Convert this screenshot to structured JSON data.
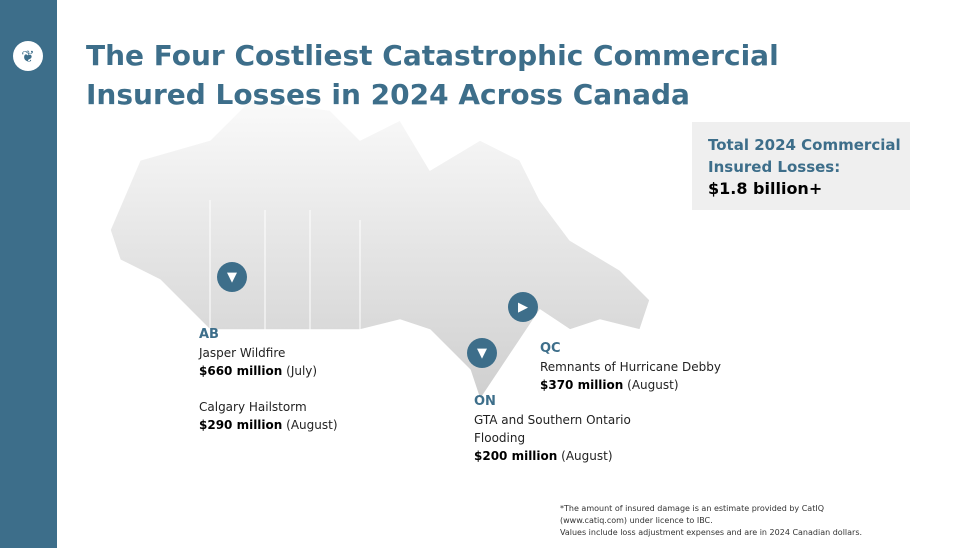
{
  "title": "The Four Costliest Catastrophic Commercial Insured Losses in 2024 Across Canada",
  "total": {
    "label1": "Total 2024 Commercial",
    "label2": "Insured Losses:",
    "value": "$1.8 billion+"
  },
  "ab": {
    "province": "AB",
    "event1": "Jasper Wildfire",
    "amount1": "$660 million",
    "when1": " (July)",
    "event2": "Calgary Hailstorm",
    "amount2": "$290 million",
    "when2": " (August)"
  },
  "qc": {
    "province": "QC",
    "event": "Remnants of Hurricane Debby",
    "amount": "$370 million",
    "when": " (August)"
  },
  "on": {
    "province": "ON",
    "event1": "GTA and Southern Ontario",
    "event2": "Flooding",
    "amount": "$200 million",
    "when": " (August)"
  },
  "note": [
    "*The amount of insured damage is an estimate provided by CatIQ",
    "(www.catiq.com) under licence to IBC.",
    "Values include loss adjustment expenses and are in 2024 Canadian dollars."
  ],
  "colors": {
    "accent": "#3d6e8a"
  }
}
